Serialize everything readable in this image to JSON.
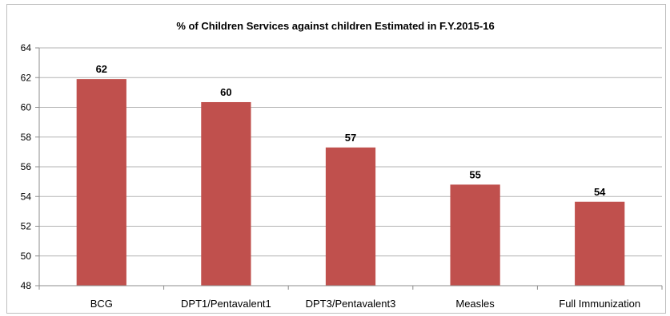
{
  "chart_data": {
    "type": "bar",
    "title": "% of Children Services against  children Estimated in F.Y.2015-16",
    "categories": [
      "BCG",
      "DPT1/Pentavalent1",
      "DPT3/Pentavalent3",
      "Measles",
      "Full Immunization"
    ],
    "values": [
      61.9,
      60.35,
      57.3,
      54.8,
      53.65
    ],
    "data_labels": [
      "62",
      "60",
      "57",
      "55",
      "54"
    ],
    "ylim": [
      48,
      64
    ],
    "yticks": [
      "48",
      "50",
      "52",
      "54",
      "56",
      "58",
      "60",
      "62",
      "64"
    ],
    "xlabel": "",
    "ylabel": "",
    "grid": true,
    "legend": "none",
    "bar_color": "#c0504d"
  }
}
